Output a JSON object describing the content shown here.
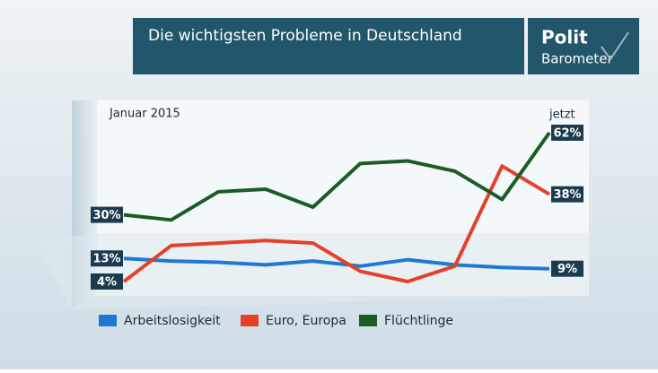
{
  "chart_data": {
    "type": "line",
    "title": "Die wichtigsten Probleme in Deutschland",
    "logo": [
      "Polit",
      "Barometer"
    ],
    "start_label": "Januar 2015",
    "end_label": "jetzt",
    "series": [
      {
        "name": "Arbeitslosigkeit",
        "color": "#1f78d1",
        "values": [
          13,
          12,
          11.5,
          10.5,
          12,
          10,
          12.5,
          10.5,
          9.5,
          9
        ],
        "value_labels": [
          "13%",
          null,
          null,
          null,
          null,
          null,
          null,
          null,
          null,
          "9%"
        ]
      },
      {
        "name": "Euro, Europa",
        "color": "#e5402a",
        "values": [
          4,
          18,
          19,
          20,
          19,
          8,
          4,
          10,
          49,
          38
        ],
        "value_labels": [
          "4%",
          null,
          null,
          null,
          null,
          null,
          null,
          null,
          null,
          "38%"
        ]
      },
      {
        "name": "Flüchtlinge",
        "color": "#1b5c22",
        "values": [
          30,
          28,
          39,
          40,
          33,
          50,
          51,
          47,
          36,
          62
        ],
        "value_labels": [
          "30%",
          null,
          null,
          null,
          null,
          null,
          null,
          null,
          null,
          "62%"
        ]
      }
    ]
  }
}
